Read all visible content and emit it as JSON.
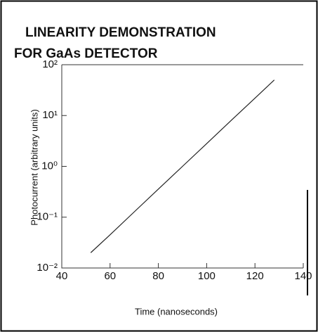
{
  "chart_data": {
    "type": "line",
    "title": [
      "LINEARITY  DEMONSTRATION",
      "FOR  GaAs  DETECTOR"
    ],
    "x_label": "Time   (nanoseconds)",
    "y_label": "Photocurrent (arbitrary units)",
    "log_y": true,
    "x": [
      52,
      60,
      70,
      80,
      90,
      100,
      110,
      120,
      128
    ],
    "series": [
      {
        "color": "#222",
        "values": [
          0.02,
          0.045,
          0.127,
          0.357,
          1.0,
          2.8,
          7.9,
          22,
          50
        ]
      }
    ],
    "xlim": [
      40,
      140
    ],
    "xticks": [
      40,
      60,
      80,
      100,
      120,
      140
    ],
    "ylim": [
      0.01,
      100
    ],
    "yticks": [
      {
        "value": 0.01,
        "label": "10⁻²"
      },
      {
        "value": 0.1,
        "label": "10⁻¹"
      },
      {
        "value": 1,
        "label": "10⁰"
      },
      {
        "value": 10,
        "label": "10¹"
      },
      {
        "value": 100,
        "label": "10²"
      }
    ]
  }
}
